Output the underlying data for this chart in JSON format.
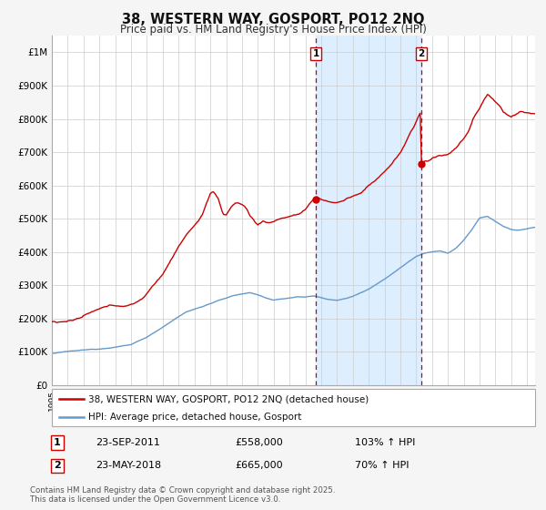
{
  "title": "38, WESTERN WAY, GOSPORT, PO12 2NQ",
  "subtitle": "Price paid vs. HM Land Registry's House Price Index (HPI)",
  "legend_line1": "38, WESTERN WAY, GOSPORT, PO12 2NQ (detached house)",
  "legend_line2": "HPI: Average price, detached house, Gosport",
  "footer": "Contains HM Land Registry data © Crown copyright and database right 2025.\nThis data is licensed under the Open Government Licence v3.0.",
  "sale1_date": "23-SEP-2011",
  "sale1_price": 558000,
  "sale1_hpi": "103% ↑ HPI",
  "sale2_date": "23-MAY-2018",
  "sale2_price": 665000,
  "sale2_hpi": "70% ↑ HPI",
  "sale1_label": "1",
  "sale2_label": "2",
  "red_color": "#cc0000",
  "blue_color": "#6699cc",
  "shade_color": "#ddeeff",
  "grid_color": "#cccccc",
  "bg_color": "#f5f5f5",
  "title_color": "#111111",
  "ylim": [
    0,
    1050000
  ],
  "yticks": [
    0,
    100000,
    200000,
    300000,
    400000,
    500000,
    600000,
    700000,
    800000,
    900000,
    1000000
  ],
  "ytick_labels": [
    "£0",
    "£100K",
    "£200K",
    "£300K",
    "£400K",
    "£500K",
    "£600K",
    "£700K",
    "£800K",
    "£900K",
    "£1M"
  ],
  "start_year": 1995,
  "end_year": 2025
}
